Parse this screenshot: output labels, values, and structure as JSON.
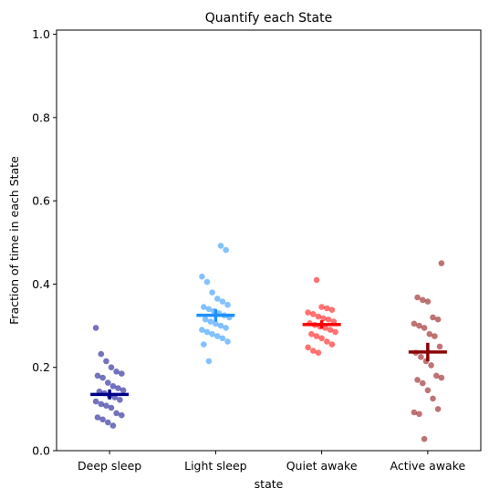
{
  "chart_data": {
    "type": "scatter",
    "title": "Quantify each State",
    "xlabel": "state",
    "ylabel": "Fraction of time in each State",
    "categories": [
      "Deep sleep",
      "Light sleep",
      "Quiet awake",
      "Active awake"
    ],
    "ylim": [
      0,
      1.01
    ],
    "yticks": [
      "0.0",
      "0.2",
      "0.4",
      "0.6",
      "0.8",
      "1.0"
    ],
    "grid": false,
    "series": [
      {
        "color": "#00008b",
        "mean": 0.135,
        "sem": 0.012,
        "values": [
          0.295,
          0.232,
          0.215,
          0.2,
          0.19,
          0.185,
          0.18,
          0.175,
          0.163,
          0.155,
          0.15,
          0.145,
          0.142,
          0.138,
          0.132,
          0.128,
          0.122,
          0.118,
          0.112,
          0.108,
          0.103,
          0.09,
          0.085,
          0.08,
          0.075,
          0.068,
          0.06
        ]
      },
      {
        "color": "#1e90ff",
        "mean": 0.325,
        "sem": 0.015,
        "values": [
          0.492,
          0.482,
          0.418,
          0.405,
          0.38,
          0.365,
          0.358,
          0.35,
          0.345,
          0.34,
          0.335,
          0.33,
          0.325,
          0.32,
          0.315,
          0.31,
          0.305,
          0.3,
          0.295,
          0.29,
          0.285,
          0.28,
          0.275,
          0.27,
          0.262,
          0.255,
          0.215
        ]
      },
      {
        "color": "#ff0000",
        "mean": 0.303,
        "sem": 0.01,
        "values": [
          0.41,
          0.345,
          0.342,
          0.338,
          0.332,
          0.328,
          0.322,
          0.318,
          0.315,
          0.31,
          0.306,
          0.302,
          0.298,
          0.295,
          0.29,
          0.285,
          0.28,
          0.275,
          0.27,
          0.262,
          0.255,
          0.248,
          0.24,
          0.235
        ]
      },
      {
        "color": "#8b0000",
        "mean": 0.237,
        "sem": 0.022,
        "values": [
          0.45,
          0.368,
          0.362,
          0.358,
          0.32,
          0.315,
          0.305,
          0.3,
          0.295,
          0.28,
          0.275,
          0.25,
          0.235,
          0.225,
          0.215,
          0.205,
          0.18,
          0.175,
          0.17,
          0.162,
          0.145,
          0.125,
          0.1,
          0.092,
          0.088,
          0.028
        ]
      }
    ]
  }
}
